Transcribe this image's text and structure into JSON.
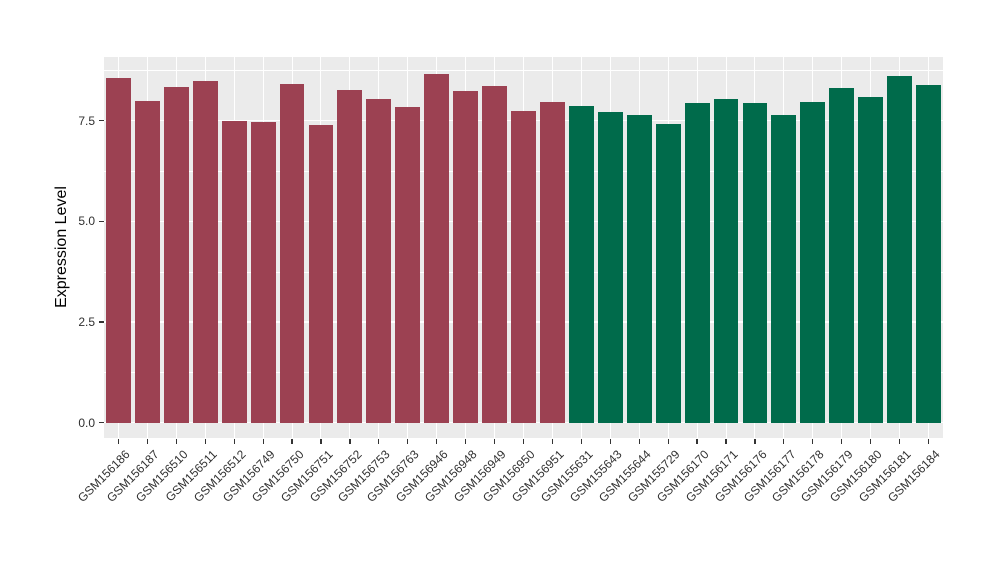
{
  "figure": {
    "background_color": "#FFFFFF"
  },
  "chart_data": {
    "type": "bar",
    "title": "",
    "xlabel": "",
    "ylabel": "Expression Level",
    "ylim": [
      0,
      9.1
    ],
    "y_ticks": [
      0,
      2.5,
      5,
      7.5
    ],
    "y_tick_labels": [
      "0.0",
      "2.5",
      "5.0",
      "7.5"
    ],
    "y_minor_ticks": [
      1.25,
      3.75,
      6.25,
      8.75
    ],
    "grid": "major and minor horizontal white lines plus vertical white line per category on gray panel",
    "legend_position": "none",
    "x_tick_rotation_deg": 45,
    "panel_background": "#EBEBEB",
    "grid_color": "#FFFFFF",
    "tick_mark_color": "#333333",
    "tick_label_color": "#303030",
    "group_colors": {
      "group1": "#9C4152",
      "group2": "#006B4B"
    },
    "bars": [
      {
        "label": "GSM156186",
        "value": 8.55,
        "group": "group1"
      },
      {
        "label": "GSM156187",
        "value": 7.99,
        "group": "group1"
      },
      {
        "label": "GSM156510",
        "value": 8.34,
        "group": "group1"
      },
      {
        "label": "GSM156511",
        "value": 8.48,
        "group": "group1"
      },
      {
        "label": "GSM156512",
        "value": 7.49,
        "group": "group1"
      },
      {
        "label": "GSM156749",
        "value": 7.47,
        "group": "group1"
      },
      {
        "label": "GSM156750",
        "value": 8.41,
        "group": "group1"
      },
      {
        "label": "GSM156751",
        "value": 7.39,
        "group": "group1"
      },
      {
        "label": "GSM156752",
        "value": 8.27,
        "group": "group1"
      },
      {
        "label": "GSM156753",
        "value": 8.03,
        "group": "group1"
      },
      {
        "label": "GSM156763",
        "value": 7.83,
        "group": "group1"
      },
      {
        "label": "GSM156946",
        "value": 8.65,
        "group": "group1"
      },
      {
        "label": "GSM156948",
        "value": 8.24,
        "group": "group1"
      },
      {
        "label": "GSM156949",
        "value": 8.36,
        "group": "group1"
      },
      {
        "label": "GSM156950",
        "value": 7.75,
        "group": "group1"
      },
      {
        "label": "GSM156951",
        "value": 7.97,
        "group": "group1"
      },
      {
        "label": "GSM155631",
        "value": 7.86,
        "group": "group2"
      },
      {
        "label": "GSM155643",
        "value": 7.72,
        "group": "group2"
      },
      {
        "label": "GSM155644",
        "value": 7.64,
        "group": "group2"
      },
      {
        "label": "GSM155729",
        "value": 7.41,
        "group": "group2"
      },
      {
        "label": "GSM156170",
        "value": 7.95,
        "group": "group2"
      },
      {
        "label": "GSM156171",
        "value": 8.04,
        "group": "group2"
      },
      {
        "label": "GSM156176",
        "value": 7.93,
        "group": "group2"
      },
      {
        "label": "GSM156177",
        "value": 7.65,
        "group": "group2"
      },
      {
        "label": "GSM156178",
        "value": 7.96,
        "group": "group2"
      },
      {
        "label": "GSM156179",
        "value": 8.31,
        "group": "group2"
      },
      {
        "label": "GSM156180",
        "value": 8.08,
        "group": "group2"
      },
      {
        "label": "GSM156181",
        "value": 8.6,
        "group": "group2"
      },
      {
        "label": "GSM156184",
        "value": 8.39,
        "group": "group2"
      }
    ]
  }
}
